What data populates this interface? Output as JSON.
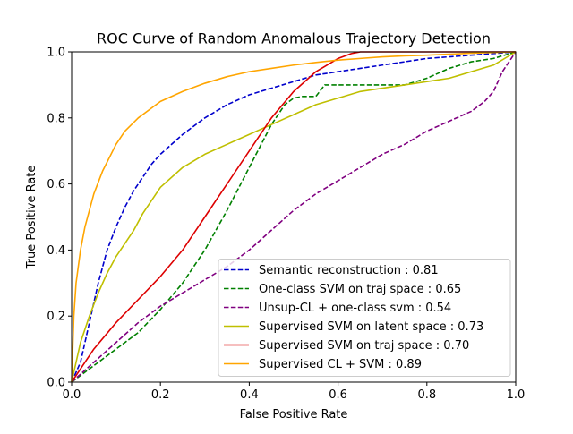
{
  "chart_data": {
    "type": "line",
    "title": "ROC Curve of Random Anomalous Trajectory Detection",
    "xlabel": "False Positive Rate",
    "ylabel": "True Positive Rate",
    "xlim": [
      0.0,
      1.0
    ],
    "ylim": [
      0.0,
      1.0
    ],
    "xticks": [
      0.0,
      0.2,
      0.4,
      0.6,
      0.8,
      1.0
    ],
    "yticks": [
      0.0,
      0.2,
      0.4,
      0.6,
      0.8,
      1.0
    ],
    "xtick_labels": [
      "0.0",
      "0.2",
      "0.4",
      "0.6",
      "0.8",
      "1.0"
    ],
    "ytick_labels": [
      "0.0",
      "0.2",
      "0.4",
      "0.6",
      "0.8",
      "1.0"
    ],
    "grid": false,
    "legend_position": "lower-right",
    "series": [
      {
        "name": "Semantic reconstruction",
        "legend_label": "Semantic reconstruction :   0.81",
        "auc": 0.81,
        "color": "#0000cc",
        "dash": "dashed",
        "x": [
          0.0,
          0.02,
          0.04,
          0.06,
          0.08,
          0.1,
          0.12,
          0.14,
          0.16,
          0.18,
          0.2,
          0.25,
          0.3,
          0.35,
          0.4,
          0.45,
          0.5,
          0.55,
          0.6,
          0.65,
          0.7,
          0.75,
          0.8,
          0.85,
          0.9,
          0.95,
          1.0
        ],
        "y": [
          0.0,
          0.06,
          0.18,
          0.3,
          0.4,
          0.47,
          0.53,
          0.58,
          0.62,
          0.66,
          0.69,
          0.75,
          0.8,
          0.84,
          0.87,
          0.89,
          0.91,
          0.93,
          0.94,
          0.95,
          0.96,
          0.97,
          0.98,
          0.985,
          0.99,
          0.995,
          1.0
        ]
      },
      {
        "name": "One-class SVM on traj space",
        "legend_label": "One-class SVM on traj space :   0.65",
        "auc": 0.65,
        "color": "#008000",
        "dash": "dashed",
        "x": [
          0.0,
          0.05,
          0.1,
          0.15,
          0.2,
          0.25,
          0.3,
          0.35,
          0.4,
          0.45,
          0.48,
          0.5,
          0.52,
          0.55,
          0.57,
          0.6,
          0.65,
          0.7,
          0.75,
          0.8,
          0.85,
          0.9,
          0.95,
          1.0
        ],
        "y": [
          0.0,
          0.05,
          0.1,
          0.15,
          0.22,
          0.3,
          0.4,
          0.52,
          0.65,
          0.78,
          0.84,
          0.86,
          0.865,
          0.865,
          0.9,
          0.9,
          0.9,
          0.9,
          0.9,
          0.92,
          0.95,
          0.97,
          0.98,
          1.0
        ]
      },
      {
        "name": "Unsup-CL + one-class svm",
        "legend_label": "Unsup-CL + one-class svm :   0.54",
        "auc": 0.54,
        "color": "#800080",
        "dash": "dashed",
        "x": [
          0.0,
          0.05,
          0.1,
          0.15,
          0.2,
          0.25,
          0.3,
          0.35,
          0.4,
          0.45,
          0.5,
          0.55,
          0.6,
          0.65,
          0.7,
          0.75,
          0.8,
          0.85,
          0.9,
          0.93,
          0.95,
          0.97,
          1.0
        ],
        "y": [
          0.0,
          0.06,
          0.12,
          0.18,
          0.23,
          0.27,
          0.31,
          0.35,
          0.4,
          0.46,
          0.52,
          0.57,
          0.61,
          0.65,
          0.69,
          0.72,
          0.76,
          0.79,
          0.82,
          0.85,
          0.88,
          0.94,
          1.0
        ]
      },
      {
        "name": "Supervised SVM on latent space",
        "legend_label": "Supervised SVM on latent space :   0.73",
        "auc": 0.73,
        "color": "#bfbf00",
        "dash": "solid",
        "x": [
          0.0,
          0.02,
          0.04,
          0.06,
          0.08,
          0.1,
          0.12,
          0.14,
          0.16,
          0.18,
          0.2,
          0.25,
          0.3,
          0.35,
          0.4,
          0.45,
          0.5,
          0.55,
          0.6,
          0.65,
          0.7,
          0.75,
          0.8,
          0.85,
          0.9,
          0.95,
          1.0
        ],
        "y": [
          0.0,
          0.12,
          0.2,
          0.27,
          0.33,
          0.38,
          0.42,
          0.46,
          0.51,
          0.55,
          0.59,
          0.65,
          0.69,
          0.72,
          0.75,
          0.78,
          0.81,
          0.84,
          0.86,
          0.88,
          0.89,
          0.9,
          0.91,
          0.92,
          0.94,
          0.96,
          1.0
        ]
      },
      {
        "name": "Supervised SVM on traj space",
        "legend_label": "Supervised SVM on traj space :   0.70",
        "auc": 0.7,
        "color": "#dd0000",
        "dash": "solid",
        "x": [
          0.0,
          0.05,
          0.1,
          0.15,
          0.2,
          0.25,
          0.3,
          0.35,
          0.4,
          0.45,
          0.5,
          0.55,
          0.6,
          0.63,
          0.65,
          0.7,
          0.75,
          0.8,
          0.85,
          0.9,
          0.95,
          1.0
        ],
        "y": [
          0.0,
          0.1,
          0.18,
          0.25,
          0.32,
          0.4,
          0.5,
          0.6,
          0.7,
          0.8,
          0.88,
          0.94,
          0.98,
          0.995,
          1.0,
          1.0,
          1.0,
          1.0,
          1.0,
          1.0,
          1.0,
          1.0
        ]
      },
      {
        "name": "Supervised CL + SVM",
        "legend_label": "Supervised CL + SVM :   0.89",
        "auc": 0.89,
        "color": "#ffa500",
        "dash": "solid",
        "x": [
          0.0,
          0.005,
          0.01,
          0.02,
          0.03,
          0.05,
          0.07,
          0.1,
          0.12,
          0.15,
          0.2,
          0.25,
          0.3,
          0.35,
          0.4,
          0.45,
          0.5,
          0.55,
          0.6,
          0.65,
          0.7,
          0.75,
          0.8,
          0.85,
          0.9,
          0.95,
          1.0
        ],
        "y": [
          0.0,
          0.2,
          0.3,
          0.4,
          0.47,
          0.57,
          0.64,
          0.72,
          0.76,
          0.8,
          0.85,
          0.88,
          0.905,
          0.925,
          0.94,
          0.95,
          0.96,
          0.968,
          0.975,
          0.98,
          0.985,
          0.988,
          0.99,
          0.993,
          0.996,
          0.998,
          1.0
        ]
      }
    ]
  }
}
